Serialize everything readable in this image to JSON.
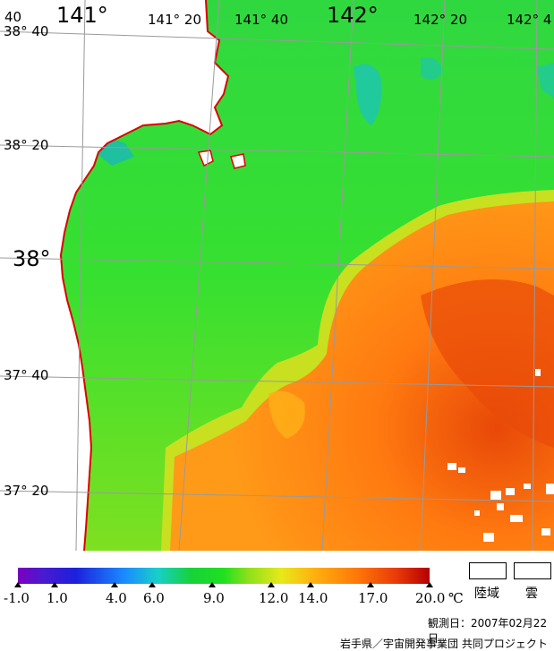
{
  "map": {
    "lon_labels_big": [
      "141°",
      "142°"
    ],
    "lon_labels_small": [
      "141° 20",
      "141° 40",
      "142° 20",
      "142° 4"
    ],
    "lat_labels_big": [
      "38°"
    ],
    "lat_labels_small": [
      "38° 40",
      "38° 20",
      "37° 40",
      "37° 20"
    ],
    "corner_label": "40",
    "colors": {
      "land": "#ffffff",
      "coastline": "#e00000",
      "grid": "#a0a0a0",
      "cold_sea": "#18c8a0",
      "mid_sea": "#30e030",
      "warm_sea": "#ff8010",
      "hot_sea": "#e84008"
    }
  },
  "colorbar": {
    "tick_labels": [
      "-1.0",
      "1.0",
      "4.0",
      "6.0",
      "9.0",
      "12.0",
      "14.0",
      "17.0",
      "20.0"
    ],
    "unit": "℃"
  },
  "legend": {
    "land_label": "陸域",
    "cloud_label": "雲"
  },
  "observation": "観測日：2007年02月22日",
  "credit": "岩手県／宇宙開発事業団  共同プロジェクト"
}
